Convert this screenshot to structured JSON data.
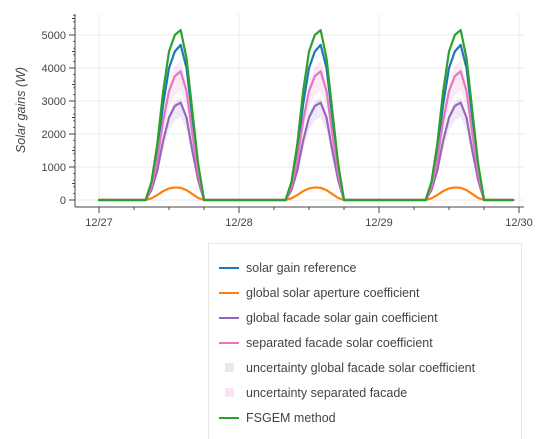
{
  "chart_data": {
    "type": "line",
    "title": "",
    "xlabel": "",
    "ylabel": "Solar gains (W)",
    "x_tick_labels": [
      "12/27",
      "12/28",
      "12/29",
      "12/30"
    ],
    "y_tick_labels": [
      "0",
      "1000",
      "2000",
      "3000",
      "4000",
      "5000"
    ],
    "xlim": [
      "12/27 00:00",
      "12/30 00:00"
    ],
    "ylim": [
      -250,
      5750
    ],
    "grid": true,
    "legend_position": "bottom-right, below plot",
    "x": [
      "12/27 00:00",
      "12/27 03:00",
      "12/27 06:00",
      "12/27 08:00",
      "12/27 09:00",
      "12/27 10:00",
      "12/27 11:00",
      "12/27 12:00",
      "12/27 13:00",
      "12/27 14:00",
      "12/27 15:00",
      "12/27 16:00",
      "12/27 17:00",
      "12/27 18:00",
      "12/27 21:00",
      "12/28 00:00",
      "12/28 03:00",
      "12/28 06:00",
      "12/28 08:00",
      "12/28 09:00",
      "12/28 10:00",
      "12/28 11:00",
      "12/28 12:00",
      "12/28 13:00",
      "12/28 14:00",
      "12/28 15:00",
      "12/28 16:00",
      "12/28 17:00",
      "12/28 18:00",
      "12/28 21:00",
      "12/29 00:00",
      "12/29 03:00",
      "12/29 06:00",
      "12/29 08:00",
      "12/29 09:00",
      "12/29 10:00",
      "12/29 11:00",
      "12/29 12:00",
      "12/29 13:00",
      "12/29 14:00",
      "12/29 15:00",
      "12/29 16:00",
      "12/29 17:00",
      "12/29 18:00",
      "12/29 21:00",
      "12/29 23:00"
    ],
    "series": [
      {
        "name": "solar gain reference",
        "color": "#1f77b4",
        "kind": "line",
        "values": [
          0,
          0,
          0,
          0,
          500,
          1500,
          2900,
          4000,
          4500,
          4700,
          4000,
          2500,
          1000,
          0,
          0,
          0,
          0,
          0,
          0,
          500,
          1500,
          2900,
          4000,
          4500,
          4700,
          4000,
          2500,
          1000,
          0,
          0,
          0,
          0,
          0,
          0,
          500,
          1500,
          2900,
          4000,
          4500,
          4700,
          4000,
          2500,
          1000,
          0,
          0,
          0
        ]
      },
      {
        "name": "global solar aperture coefficient",
        "color": "#ff7f0e",
        "kind": "line",
        "values": [
          0,
          0,
          0,
          0,
          50,
          150,
          270,
          350,
          380,
          370,
          300,
          180,
          60,
          0,
          0,
          0,
          0,
          0,
          0,
          50,
          150,
          270,
          350,
          380,
          370,
          300,
          180,
          60,
          0,
          0,
          0,
          0,
          0,
          0,
          50,
          150,
          270,
          350,
          380,
          370,
          300,
          180,
          60,
          0,
          0,
          0
        ]
      },
      {
        "name": "global facade solar gain coefficient",
        "color": "#9467bd",
        "kind": "line",
        "values": [
          0,
          0,
          0,
          0,
          300,
          900,
          1800,
          2500,
          2850,
          2950,
          2500,
          1500,
          600,
          0,
          0,
          0,
          0,
          0,
          0,
          300,
          900,
          1800,
          2500,
          2850,
          2950,
          2500,
          1500,
          600,
          0,
          0,
          0,
          0,
          0,
          0,
          300,
          900,
          1800,
          2500,
          2850,
          2950,
          2500,
          1500,
          600,
          0,
          0,
          0
        ]
      },
      {
        "name": "separated facade solar coefficient",
        "color": "#e377c2",
        "kind": "line",
        "values": [
          0,
          0,
          0,
          0,
          400,
          1200,
          2400,
          3300,
          3750,
          3900,
          3300,
          2000,
          800,
          0,
          0,
          0,
          0,
          0,
          0,
          400,
          1200,
          2400,
          3300,
          3750,
          3900,
          3300,
          2000,
          800,
          0,
          0,
          0,
          0,
          0,
          0,
          400,
          1200,
          2400,
          3300,
          3750,
          3900,
          3300,
          2000,
          800,
          0,
          0,
          0
        ]
      },
      {
        "name": "uncertainty global facade solar coefficient",
        "color": "#9467bd",
        "kind": "band",
        "opacity": 0.15,
        "ref": 2,
        "scale_low": 0.85,
        "scale_high": 1.05
      },
      {
        "name": "uncertainty separated facade",
        "color": "#e377c2",
        "kind": "band",
        "opacity": 0.15,
        "ref": 3,
        "scale_low": 0.85,
        "scale_high": 1.08
      },
      {
        "name": "FSGEM method",
        "color": "#2ca02c",
        "kind": "line",
        "values": [
          0,
          0,
          0,
          0,
          550,
          1700,
          3300,
          4500,
          5000,
          5150,
          4300,
          2700,
          1100,
          0,
          0,
          0,
          0,
          0,
          0,
          550,
          1700,
          3300,
          4500,
          5000,
          5150,
          4300,
          2700,
          1100,
          0,
          0,
          0,
          0,
          0,
          0,
          550,
          1700,
          3300,
          4500,
          5000,
          5150,
          4300,
          2700,
          1100,
          0,
          0,
          0
        ]
      }
    ]
  },
  "legend": {
    "items": [
      {
        "label": "solar gain reference",
        "color": "#1f77b4",
        "kind": "line"
      },
      {
        "label": "global solar aperture coefficient",
        "color": "#ff7f0e",
        "kind": "line"
      },
      {
        "label": "global facade solar gain coefficient",
        "color": "#9467bd",
        "kind": "line"
      },
      {
        "label": "separated facade solar coefficient",
        "color": "#e377c2",
        "kind": "line"
      },
      {
        "label": "uncertainty global facade solar coefficient",
        "color": "#ece6f5",
        "kind": "box"
      },
      {
        "label": "uncertainty separated facade",
        "color": "#fae4f3",
        "kind": "box"
      },
      {
        "label": "FSGEM method",
        "color": "#2ca02c",
        "kind": "line"
      }
    ]
  }
}
